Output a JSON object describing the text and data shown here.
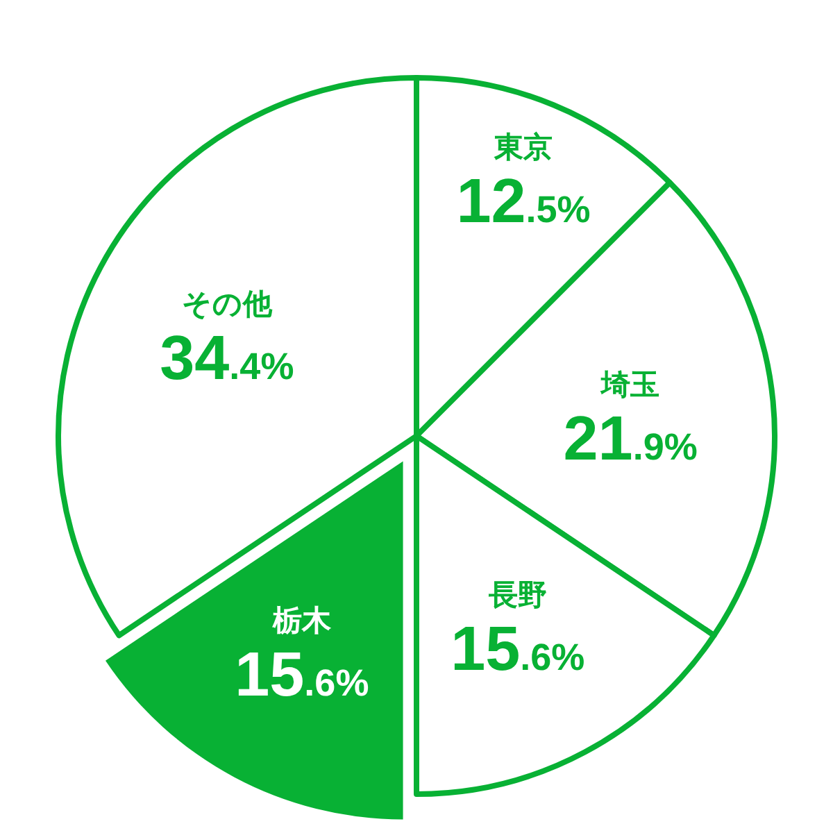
{
  "chart_data": {
    "type": "pie",
    "categories": [
      "東京",
      "埼玉",
      "長野",
      "栃木",
      "その他"
    ],
    "values": [
      12.5,
      21.9,
      15.6,
      15.6,
      34.4
    ],
    "colors": [
      "#ffffff",
      "#ffffff",
      "#ffffff",
      "#08b134",
      "#ffffff"
    ],
    "value_labels": [
      "12.5%",
      "21.9%",
      "15.6%",
      "15.6%",
      "34.4%"
    ]
  }
}
